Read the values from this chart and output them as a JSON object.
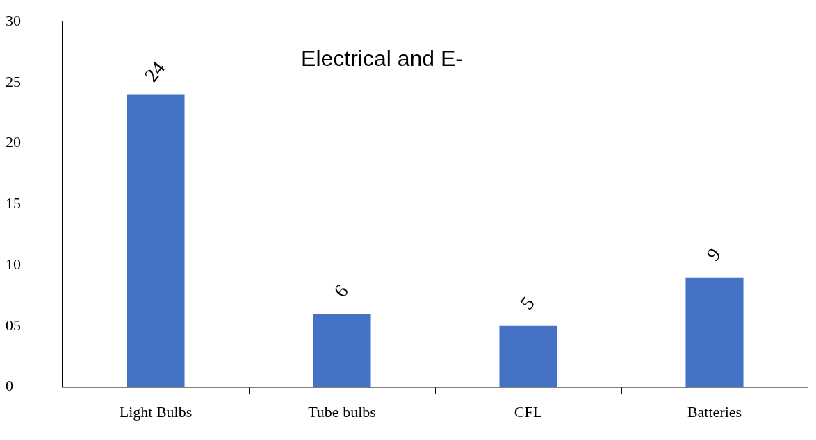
{
  "chart_data": {
    "type": "bar",
    "title": "Electrical and E-",
    "categories": [
      "Light Bulbs",
      "Tube bulbs",
      "CFL",
      "Batteries"
    ],
    "values": [
      24,
      6,
      5,
      9
    ],
    "color": "#4472c4",
    "data_labels": true,
    "ylim": [
      0,
      30
    ],
    "yticks": [
      30,
      25,
      20,
      15,
      10,
      {
        "value": 5,
        "label": "05"
      },
      0
    ],
    "grid": false,
    "legend": false
  }
}
